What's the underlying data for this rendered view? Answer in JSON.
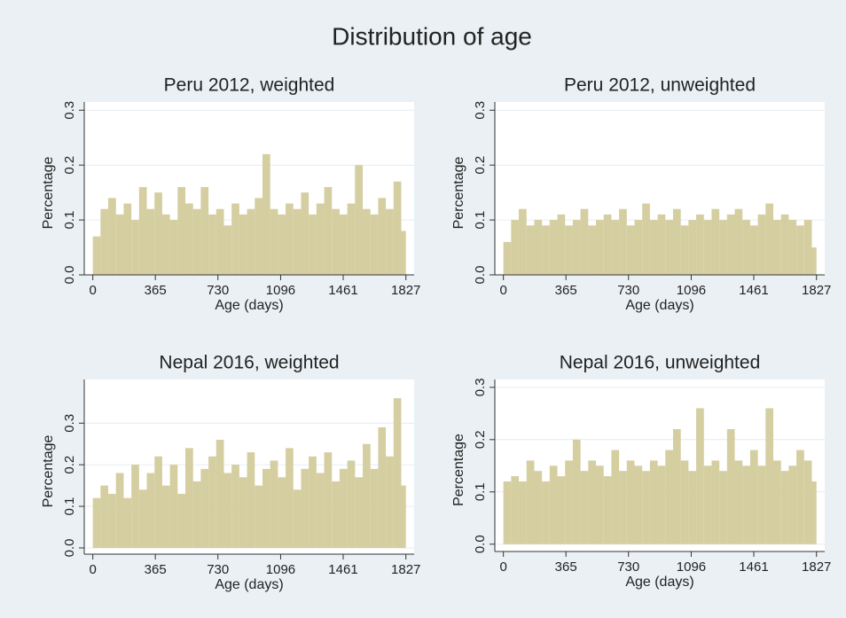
{
  "title": "Distribution of age",
  "chart_data": [
    {
      "type": "histogram",
      "title": "Peru 2012, weighted",
      "x_label": "Age (days)",
      "y_label": "Percentage",
      "bins": [
        0,
        45,
        90,
        135,
        180,
        225,
        270,
        315,
        360,
        405,
        450,
        495,
        540,
        585,
        630,
        675,
        720,
        765,
        810,
        855,
        900,
        945,
        990,
        1035,
        1080,
        1125,
        1170,
        1215,
        1260,
        1305,
        1350,
        1395,
        1440,
        1485,
        1530,
        1575,
        1620,
        1665,
        1710,
        1755,
        1800,
        1827
      ],
      "values": [
        0.07,
        0.12,
        0.14,
        0.11,
        0.13,
        0.1,
        0.16,
        0.12,
        0.15,
        0.11,
        0.1,
        0.16,
        0.13,
        0.12,
        0.16,
        0.11,
        0.12,
        0.09,
        0.13,
        0.11,
        0.12,
        0.14,
        0.22,
        0.12,
        0.11,
        0.13,
        0.12,
        0.15,
        0.11,
        0.13,
        0.16,
        0.12,
        0.11,
        0.13,
        0.2,
        0.12,
        0.11,
        0.14,
        0.12,
        0.17,
        0.08
      ],
      "color": "#d4cea0",
      "xlim": [
        -50,
        1875
      ],
      "ylim": [
        0,
        0.315
      ],
      "xticks": [
        0,
        365,
        730,
        1096,
        1461,
        1827
      ],
      "yticks": [
        {
          "value": 0,
          "label": "0.0"
        },
        0.1,
        0.2,
        0.3
      ],
      "grid": true
    },
    {
      "type": "histogram",
      "title": "Peru 2012, unweighted",
      "x_label": "Age (days)",
      "y_label": "Percentage",
      "bins": [
        0,
        45,
        90,
        135,
        180,
        225,
        270,
        315,
        360,
        405,
        450,
        495,
        540,
        585,
        630,
        675,
        720,
        765,
        810,
        855,
        900,
        945,
        990,
        1035,
        1080,
        1125,
        1170,
        1215,
        1260,
        1305,
        1350,
        1395,
        1440,
        1485,
        1530,
        1575,
        1620,
        1665,
        1710,
        1755,
        1800,
        1827
      ],
      "values": [
        0.06,
        0.1,
        0.12,
        0.09,
        0.1,
        0.09,
        0.1,
        0.11,
        0.09,
        0.1,
        0.12,
        0.09,
        0.1,
        0.11,
        0.1,
        0.12,
        0.09,
        0.1,
        0.13,
        0.1,
        0.11,
        0.1,
        0.12,
        0.09,
        0.1,
        0.11,
        0.1,
        0.12,
        0.1,
        0.11,
        0.12,
        0.1,
        0.09,
        0.11,
        0.13,
        0.1,
        0.11,
        0.1,
        0.09,
        0.1,
        0.05
      ],
      "color": "#d4cea0",
      "xlim": [
        -50,
        1875
      ],
      "ylim": [
        0,
        0.315
      ],
      "xticks": [
        0,
        365,
        730,
        1096,
        1461,
        1827
      ],
      "yticks": [
        {
          "value": 0,
          "label": "0.0"
        },
        0.1,
        0.2,
        0.3
      ],
      "grid": true
    },
    {
      "type": "histogram",
      "title": "Nepal 2016, weighted",
      "x_label": "Age (days)",
      "y_label": "Percentage",
      "bins": [
        0,
        45,
        90,
        135,
        180,
        225,
        270,
        315,
        360,
        405,
        450,
        495,
        540,
        585,
        630,
        675,
        720,
        765,
        810,
        855,
        900,
        945,
        990,
        1035,
        1080,
        1125,
        1170,
        1215,
        1260,
        1305,
        1350,
        1395,
        1440,
        1485,
        1530,
        1575,
        1620,
        1665,
        1710,
        1755,
        1800,
        1827
      ],
      "values": [
        0.12,
        0.15,
        0.13,
        0.18,
        0.12,
        0.2,
        0.14,
        0.18,
        0.22,
        0.15,
        0.2,
        0.13,
        0.24,
        0.16,
        0.19,
        0.22,
        0.26,
        0.18,
        0.2,
        0.17,
        0.23,
        0.15,
        0.19,
        0.21,
        0.17,
        0.24,
        0.14,
        0.19,
        0.22,
        0.18,
        0.23,
        0.16,
        0.19,
        0.21,
        0.17,
        0.25,
        0.19,
        0.29,
        0.22,
        0.36,
        0.15
      ],
      "color": "#d4cea0",
      "xlim": [
        -50,
        1875
      ],
      "ylim": [
        -0.015,
        0.405
      ],
      "xticks": [
        0,
        365,
        730,
        1096,
        1461,
        1827
      ],
      "yticks": [
        {
          "value": 0,
          "label": "0.0"
        },
        0.1,
        0.2,
        0.3
      ],
      "grid": true
    },
    {
      "type": "histogram",
      "title": "Nepal 2016, unweighted",
      "x_label": "Age (days)",
      "y_label": "Percentage",
      "bins": [
        0,
        45,
        90,
        135,
        180,
        225,
        270,
        315,
        360,
        405,
        450,
        495,
        540,
        585,
        630,
        675,
        720,
        765,
        810,
        855,
        900,
        945,
        990,
        1035,
        1080,
        1125,
        1170,
        1215,
        1260,
        1305,
        1350,
        1395,
        1440,
        1485,
        1530,
        1575,
        1620,
        1665,
        1710,
        1755,
        1800,
        1827
      ],
      "values": [
        0.12,
        0.13,
        0.12,
        0.16,
        0.14,
        0.12,
        0.15,
        0.13,
        0.16,
        0.2,
        0.14,
        0.16,
        0.15,
        0.13,
        0.18,
        0.14,
        0.16,
        0.15,
        0.14,
        0.16,
        0.15,
        0.18,
        0.22,
        0.16,
        0.14,
        0.26,
        0.15,
        0.16,
        0.14,
        0.22,
        0.16,
        0.15,
        0.18,
        0.15,
        0.26,
        0.16,
        0.14,
        0.15,
        0.18,
        0.16,
        0.12
      ],
      "color": "#d4cea0",
      "xlim": [
        -50,
        1875
      ],
      "ylim": [
        -0.014,
        0.315
      ],
      "xticks": [
        0,
        365,
        730,
        1096,
        1461,
        1827
      ],
      "yticks": [
        {
          "value": 0,
          "label": "0.0"
        },
        0.1,
        0.2,
        0.3
      ],
      "grid": true
    }
  ]
}
